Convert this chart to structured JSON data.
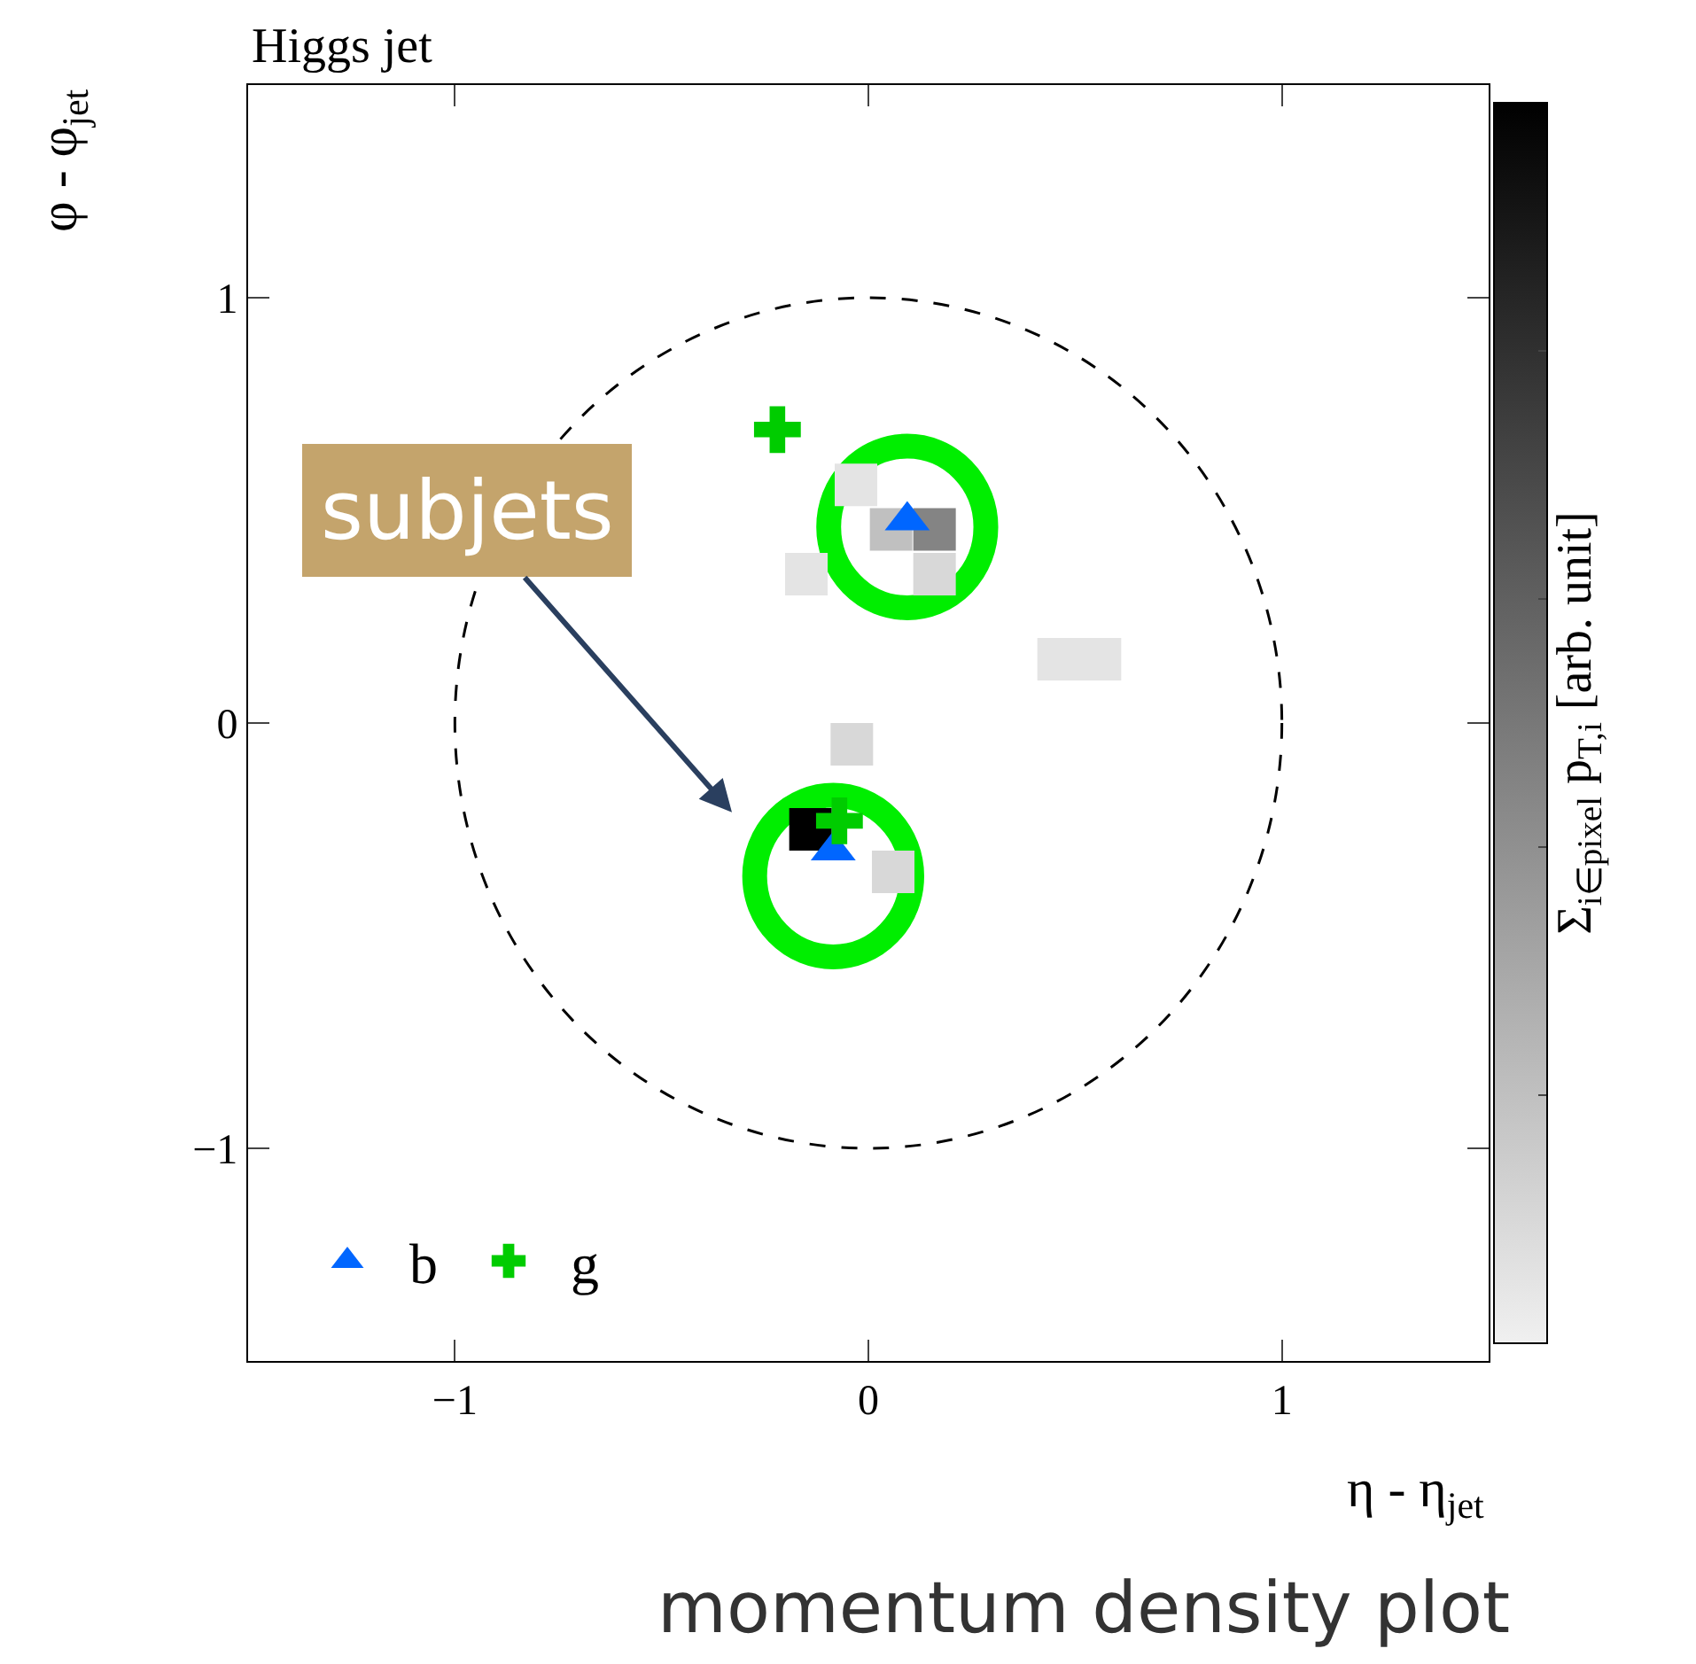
{
  "chart_data": {
    "type": "scatter",
    "title": "Higgs jet",
    "xlabel": "η - η$_{jet}$",
    "ylabel": "φ - φ$_{jet}$",
    "clabel": "Σ$_{i∈pixel}$ p$_{T,i}$ [arb. unit]",
    "xlim": [
      -1.5,
      1.5
    ],
    "ylim": [
      -1.5,
      1.5
    ],
    "xticks": [
      {
        "value": -1,
        "label": "−1"
      },
      0,
      1
    ],
    "yticks": [
      {
        "value": -1,
        "label": "−1"
      },
      0,
      1
    ],
    "grid": false,
    "legend": "bottom left",
    "annotations": [
      "subjets",
      "momentum density plot"
    ],
    "series": [
      {
        "marker": "square",
        "x": [
          -0.03,
          0.055,
          0.16,
          0.16,
          -0.15,
          0.46,
          0.56,
          -0.04,
          -0.14,
          0.06
        ],
        "values": [
          0.56,
          0.455,
          0.455,
          0.35,
          0.35,
          0.15,
          0.15,
          -0.05,
          -0.25,
          -0.35
        ],
        "colors": [
          "#e4e4e4",
          "#c0c0c0",
          "#848484",
          "#d8d8d8",
          "#e4e4e4",
          "#e4e4e4",
          "#e4e4e4",
          "#d8d8d8",
          "#000000",
          "#d8d8d8"
        ]
      },
      {
        "name": "b",
        "marker": "triangle",
        "color": "#0066ff",
        "x": [
          0.094,
          -0.085
        ],
        "values": [
          0.476,
          -0.3
        ]
      },
      {
        "name": "g",
        "marker": "cross",
        "color": "#00cc00",
        "x": [
          -0.22,
          -0.07
        ],
        "values": [
          0.69,
          -0.23
        ]
      }
    ]
  }
}
